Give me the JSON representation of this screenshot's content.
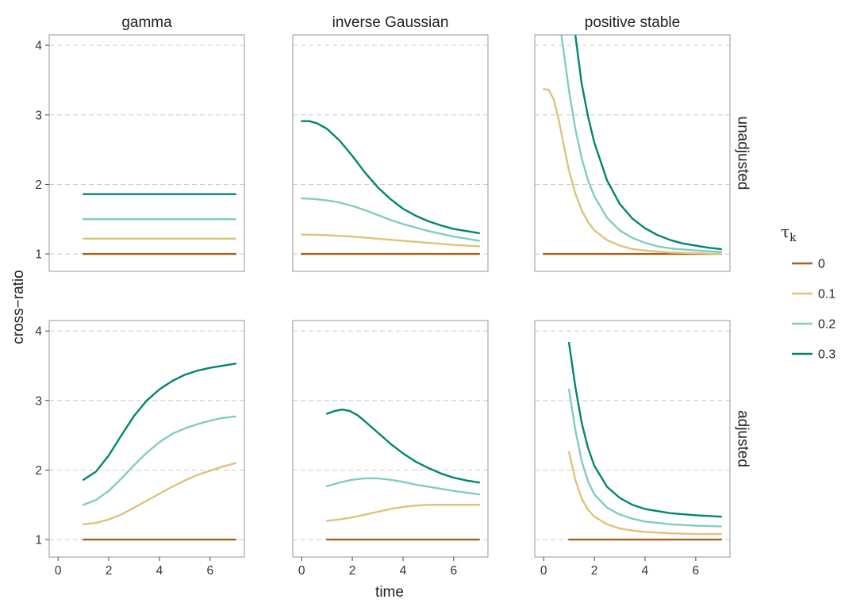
{
  "chart_data": {
    "type": "line",
    "xlabel": "time",
    "ylabel": "cross−ratio",
    "xlim": [
      -0.35,
      7.35
    ],
    "ylim": [
      0.75,
      4.15
    ],
    "x_ticks": [
      0,
      2,
      4,
      6
    ],
    "x_tick_labels": [
      "0",
      "2",
      "4",
      "6"
    ],
    "y_ticks": [
      1,
      2,
      3,
      4
    ],
    "y_tick_labels": [
      "1",
      "2",
      "3",
      "4"
    ],
    "grid": "horizontal dashed",
    "columns": [
      "gamma",
      "inverse Gaussian",
      "positive stable"
    ],
    "rows": [
      "unadjusted",
      "adjusted"
    ],
    "legend": {
      "title_symbol": "τ",
      "title_subscript": "k",
      "placement": "right",
      "entries": [
        {
          "label": "0",
          "color": "#a6611a"
        },
        {
          "label": "0.1",
          "color": "#dfc27d"
        },
        {
          "label": "0.2",
          "color": "#80cdc1"
        },
        {
          "label": "0.3",
          "color": "#018571"
        }
      ]
    },
    "panels": [
      {
        "row": "unadjusted",
        "column": "gamma",
        "series": [
          {
            "tau": "0",
            "points": [
              [
                1,
                1.0
              ],
              [
                7,
                1.0
              ]
            ]
          },
          {
            "tau": "0.1",
            "points": [
              [
                1,
                1.22
              ],
              [
                7,
                1.22
              ]
            ]
          },
          {
            "tau": "0.2",
            "points": [
              [
                1,
                1.5
              ],
              [
                7,
                1.5
              ]
            ]
          },
          {
            "tau": "0.3",
            "points": [
              [
                1,
                1.86
              ],
              [
                7,
                1.86
              ]
            ]
          }
        ]
      },
      {
        "row": "unadjusted",
        "column": "inverse Gaussian",
        "series": [
          {
            "tau": "0",
            "points": [
              [
                0,
                1.0
              ],
              [
                7,
                1.0
              ]
            ]
          },
          {
            "tau": "0.1",
            "points": [
              [
                0,
                1.28
              ],
              [
                1,
                1.27
              ],
              [
                2,
                1.25
              ],
              [
                3,
                1.22
              ],
              [
                4,
                1.19
              ],
              [
                5,
                1.16
              ],
              [
                6,
                1.13
              ],
              [
                7,
                1.11
              ]
            ]
          },
          {
            "tau": "0.2",
            "points": [
              [
                0,
                1.8
              ],
              [
                0.5,
                1.79
              ],
              [
                1,
                1.77
              ],
              [
                1.5,
                1.74
              ],
              [
                2,
                1.69
              ],
              [
                2.5,
                1.63
              ],
              [
                3,
                1.56
              ],
              [
                3.5,
                1.49
              ],
              [
                4,
                1.43
              ],
              [
                4.5,
                1.38
              ],
              [
                5,
                1.33
              ],
              [
                5.5,
                1.29
              ],
              [
                6,
                1.25
              ],
              [
                6.5,
                1.22
              ],
              [
                7,
                1.19
              ]
            ]
          },
          {
            "tau": "0.3",
            "points": [
              [
                0,
                2.91
              ],
              [
                0.3,
                2.91
              ],
              [
                0.6,
                2.88
              ],
              [
                1,
                2.8
              ],
              [
                1.5,
                2.63
              ],
              [
                2,
                2.41
              ],
              [
                2.5,
                2.17
              ],
              [
                3,
                1.96
              ],
              [
                3.5,
                1.79
              ],
              [
                4,
                1.65
              ],
              [
                4.5,
                1.55
              ],
              [
                5,
                1.47
              ],
              [
                5.5,
                1.41
              ],
              [
                6,
                1.36
              ],
              [
                6.5,
                1.33
              ],
              [
                7,
                1.3
              ]
            ]
          }
        ]
      },
      {
        "row": "unadjusted",
        "column": "positive stable",
        "series": [
          {
            "tau": "0",
            "points": [
              [
                0,
                1.0
              ],
              [
                7,
                1.0
              ]
            ]
          },
          {
            "tau": "0.1",
            "points": [
              [
                0,
                3.37
              ],
              [
                0.2,
                3.36
              ],
              [
                0.4,
                3.22
              ],
              [
                0.6,
                2.92
              ],
              [
                0.8,
                2.55
              ],
              [
                1,
                2.2
              ],
              [
                1.25,
                1.87
              ],
              [
                1.5,
                1.63
              ],
              [
                1.75,
                1.46
              ],
              [
                2,
                1.34
              ],
              [
                2.5,
                1.2
              ],
              [
                3,
                1.12
              ],
              [
                3.5,
                1.07
              ],
              [
                4,
                1.05
              ],
              [
                5,
                1.02
              ],
              [
                6,
                1.01
              ],
              [
                7,
                1.0
              ]
            ]
          },
          {
            "tau": "0.2",
            "points": [
              [
                0.7,
                4.15
              ],
              [
                0.85,
                3.75
              ],
              [
                1,
                3.35
              ],
              [
                1.25,
                2.8
              ],
              [
                1.5,
                2.38
              ],
              [
                1.75,
                2.06
              ],
              [
                2,
                1.83
              ],
              [
                2.5,
                1.52
              ],
              [
                3,
                1.34
              ],
              [
                3.5,
                1.23
              ],
              [
                4,
                1.16
              ],
              [
                4.5,
                1.11
              ],
              [
                5,
                1.08
              ],
              [
                6,
                1.05
              ],
              [
                7,
                1.03
              ]
            ]
          },
          {
            "tau": "0.3",
            "points": [
              [
                1.25,
                4.15
              ],
              [
                1.5,
                3.45
              ],
              [
                1.75,
                2.98
              ],
              [
                2,
                2.6
              ],
              [
                2.5,
                2.06
              ],
              [
                3,
                1.72
              ],
              [
                3.5,
                1.51
              ],
              [
                4,
                1.37
              ],
              [
                4.5,
                1.27
              ],
              [
                5,
                1.2
              ],
              [
                5.5,
                1.15
              ],
              [
                6,
                1.12
              ],
              [
                6.5,
                1.09
              ],
              [
                7,
                1.07
              ]
            ]
          }
        ]
      },
      {
        "row": "adjusted",
        "column": "gamma",
        "series": [
          {
            "tau": "0",
            "points": [
              [
                1,
                1.0
              ],
              [
                7,
                1.0
              ]
            ]
          },
          {
            "tau": "0.1",
            "points": [
              [
                1,
                1.22
              ],
              [
                1.5,
                1.24
              ],
              [
                2,
                1.29
              ],
              [
                2.5,
                1.36
              ],
              [
                3,
                1.46
              ],
              [
                3.5,
                1.56
              ],
              [
                4,
                1.66
              ],
              [
                4.5,
                1.76
              ],
              [
                5,
                1.85
              ],
              [
                5.5,
                1.93
              ],
              [
                6,
                1.99
              ],
              [
                6.5,
                2.05
              ],
              [
                7,
                2.1
              ]
            ]
          },
          {
            "tau": "0.2",
            "points": [
              [
                1,
                1.5
              ],
              [
                1.5,
                1.57
              ],
              [
                2,
                1.7
              ],
              [
                2.5,
                1.88
              ],
              [
                3,
                2.07
              ],
              [
                3.5,
                2.25
              ],
              [
                4,
                2.4
              ],
              [
                4.5,
                2.52
              ],
              [
                5,
                2.6
              ],
              [
                5.5,
                2.66
              ],
              [
                6,
                2.71
              ],
              [
                6.5,
                2.75
              ],
              [
                7,
                2.77
              ]
            ]
          },
          {
            "tau": "0.3",
            "points": [
              [
                1,
                1.86
              ],
              [
                1.5,
                1.98
              ],
              [
                2,
                2.21
              ],
              [
                2.5,
                2.5
              ],
              [
                3,
                2.78
              ],
              [
                3.5,
                3.0
              ],
              [
                4,
                3.16
              ],
              [
                4.5,
                3.28
              ],
              [
                5,
                3.37
              ],
              [
                5.5,
                3.43
              ],
              [
                6,
                3.47
              ],
              [
                6.5,
                3.5
              ],
              [
                7,
                3.53
              ]
            ]
          }
        ]
      },
      {
        "row": "adjusted",
        "column": "inverse Gaussian",
        "series": [
          {
            "tau": "0",
            "points": [
              [
                1,
                1.0
              ],
              [
                7,
                1.0
              ]
            ]
          },
          {
            "tau": "0.1",
            "points": [
              [
                1,
                1.27
              ],
              [
                1.5,
                1.29
              ],
              [
                2,
                1.32
              ],
              [
                2.5,
                1.36
              ],
              [
                3,
                1.4
              ],
              [
                3.5,
                1.44
              ],
              [
                4,
                1.47
              ],
              [
                4.5,
                1.49
              ],
              [
                5,
                1.5
              ],
              [
                6,
                1.5
              ],
              [
                7,
                1.5
              ]
            ]
          },
          {
            "tau": "0.2",
            "points": [
              [
                1,
                1.77
              ],
              [
                1.5,
                1.82
              ],
              [
                2,
                1.86
              ],
              [
                2.5,
                1.88
              ],
              [
                3,
                1.88
              ],
              [
                3.5,
                1.86
              ],
              [
                4,
                1.83
              ],
              [
                4.5,
                1.79
              ],
              [
                5,
                1.76
              ],
              [
                6,
                1.7
              ],
              [
                7,
                1.65
              ]
            ]
          },
          {
            "tau": "0.3",
            "points": [
              [
                1,
                2.81
              ],
              [
                1.3,
                2.85
              ],
              [
                1.6,
                2.87
              ],
              [
                1.9,
                2.85
              ],
              [
                2.2,
                2.79
              ],
              [
                2.5,
                2.7
              ],
              [
                3,
                2.54
              ],
              [
                3.5,
                2.38
              ],
              [
                4,
                2.24
              ],
              [
                4.5,
                2.12
              ],
              [
                5,
                2.03
              ],
              [
                5.5,
                1.95
              ],
              [
                6,
                1.89
              ],
              [
                6.5,
                1.85
              ],
              [
                7,
                1.82
              ]
            ]
          }
        ]
      },
      {
        "row": "adjusted",
        "column": "positive stable",
        "series": [
          {
            "tau": "0",
            "points": [
              [
                1,
                1.0
              ],
              [
                7,
                1.0
              ]
            ]
          },
          {
            "tau": "0.1",
            "points": [
              [
                1,
                2.26
              ],
              [
                1.25,
                1.86
              ],
              [
                1.5,
                1.59
              ],
              [
                1.75,
                1.43
              ],
              [
                2,
                1.33
              ],
              [
                2.5,
                1.22
              ],
              [
                3,
                1.16
              ],
              [
                3.5,
                1.13
              ],
              [
                4,
                1.11
              ],
              [
                5,
                1.09
              ],
              [
                6,
                1.08
              ],
              [
                7,
                1.08
              ]
            ]
          },
          {
            "tau": "0.2",
            "points": [
              [
                1,
                3.16
              ],
              [
                1.25,
                2.58
              ],
              [
                1.5,
                2.13
              ],
              [
                1.75,
                1.84
              ],
              [
                2,
                1.65
              ],
              [
                2.5,
                1.46
              ],
              [
                3,
                1.36
              ],
              [
                3.5,
                1.3
              ],
              [
                4,
                1.26
              ],
              [
                5,
                1.22
              ],
              [
                6,
                1.2
              ],
              [
                7,
                1.19
              ]
            ]
          },
          {
            "tau": "0.3",
            "points": [
              [
                1,
                3.83
              ],
              [
                1.25,
                3.2
              ],
              [
                1.5,
                2.68
              ],
              [
                1.75,
                2.32
              ],
              [
                2,
                2.06
              ],
              [
                2.5,
                1.76
              ],
              [
                3,
                1.6
              ],
              [
                3.5,
                1.5
              ],
              [
                4,
                1.44
              ],
              [
                5,
                1.38
              ],
              [
                6,
                1.35
              ],
              [
                7,
                1.33
              ]
            ]
          }
        ]
      }
    ]
  }
}
